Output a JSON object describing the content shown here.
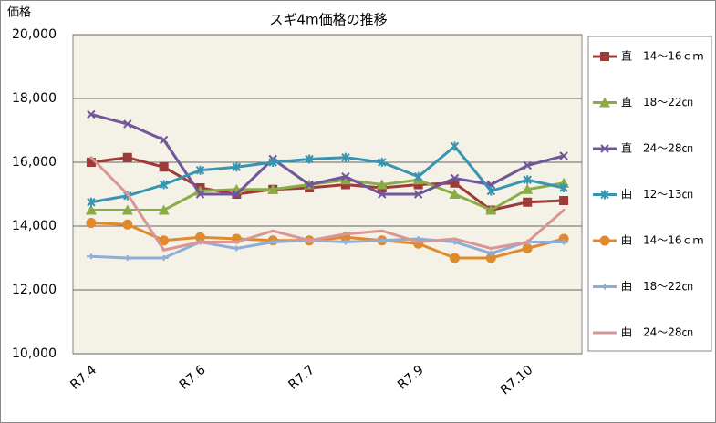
{
  "chart_data": {
    "type": "line",
    "title": "スギ4m価格の推移",
    "y_label": "価格",
    "categories": [
      "R7.4",
      null,
      null,
      "R7.6",
      null,
      null,
      "R7.7",
      null,
      null,
      "R7.9",
      null,
      null,
      "R7.10",
      null
    ],
    "ylim": [
      10000,
      20000
    ],
    "yticks": [
      {
        "value": 10000,
        "label": "10,000"
      },
      {
        "value": 12000,
        "label": "12,000"
      },
      {
        "value": 14000,
        "label": "14,000"
      },
      {
        "value": 16000,
        "label": "16,000"
      },
      {
        "value": 18000,
        "label": "18,000"
      },
      {
        "value": 20000,
        "label": "20,000"
      }
    ],
    "grid": true,
    "legend": "right",
    "series": [
      {
        "name": "直　14～16ｃｍ",
        "color": "#9e3b39",
        "marker": "square",
        "values": [
          16000,
          16150,
          15850,
          15200,
          15000,
          15150,
          15200,
          15300,
          15200,
          15300,
          15350,
          14500,
          14750,
          14800
        ]
      },
      {
        "name": "直　18～22㎝",
        "color": "#8aab45",
        "marker": "triangle",
        "values": [
          14500,
          14500,
          14500,
          15100,
          15150,
          15150,
          15300,
          15450,
          15300,
          15450,
          15000,
          14500,
          15150,
          15350
        ]
      },
      {
        "name": "直　24～28㎝",
        "color": "#71569a",
        "marker": "x",
        "values": [
          17500,
          17200,
          16700,
          15000,
          15000,
          16100,
          15300,
          15550,
          15000,
          15000,
          15500,
          15300,
          15900,
          16200
        ]
      },
      {
        "name": "曲　12～13㎝",
        "color": "#3894b0",
        "marker": "star",
        "values": [
          14750,
          14950,
          15300,
          15750,
          15850,
          16000,
          16100,
          16150,
          16000,
          15550,
          16500,
          15100,
          15450,
          15200
        ]
      },
      {
        "name": "曲　14～16ｃｍ",
        "color": "#e08a2e",
        "marker": "circle",
        "values": [
          14100,
          14050,
          13550,
          13650,
          13600,
          13550,
          13550,
          13650,
          13550,
          13450,
          13000,
          13000,
          13300,
          13600
        ]
      },
      {
        "name": "曲　18～22㎝",
        "color": "#8fadd9",
        "marker": "plus",
        "values": [
          13050,
          13000,
          13000,
          13500,
          13300,
          13500,
          13550,
          13500,
          13550,
          13600,
          13500,
          13150,
          13500,
          13500
        ]
      },
      {
        "name": "曲　24～28㎝",
        "color": "#d99694",
        "marker": "none",
        "values": [
          16150,
          15000,
          13250,
          13500,
          13500,
          13850,
          13550,
          13750,
          13850,
          13500,
          13600,
          13300,
          13500,
          14500
        ]
      }
    ]
  }
}
